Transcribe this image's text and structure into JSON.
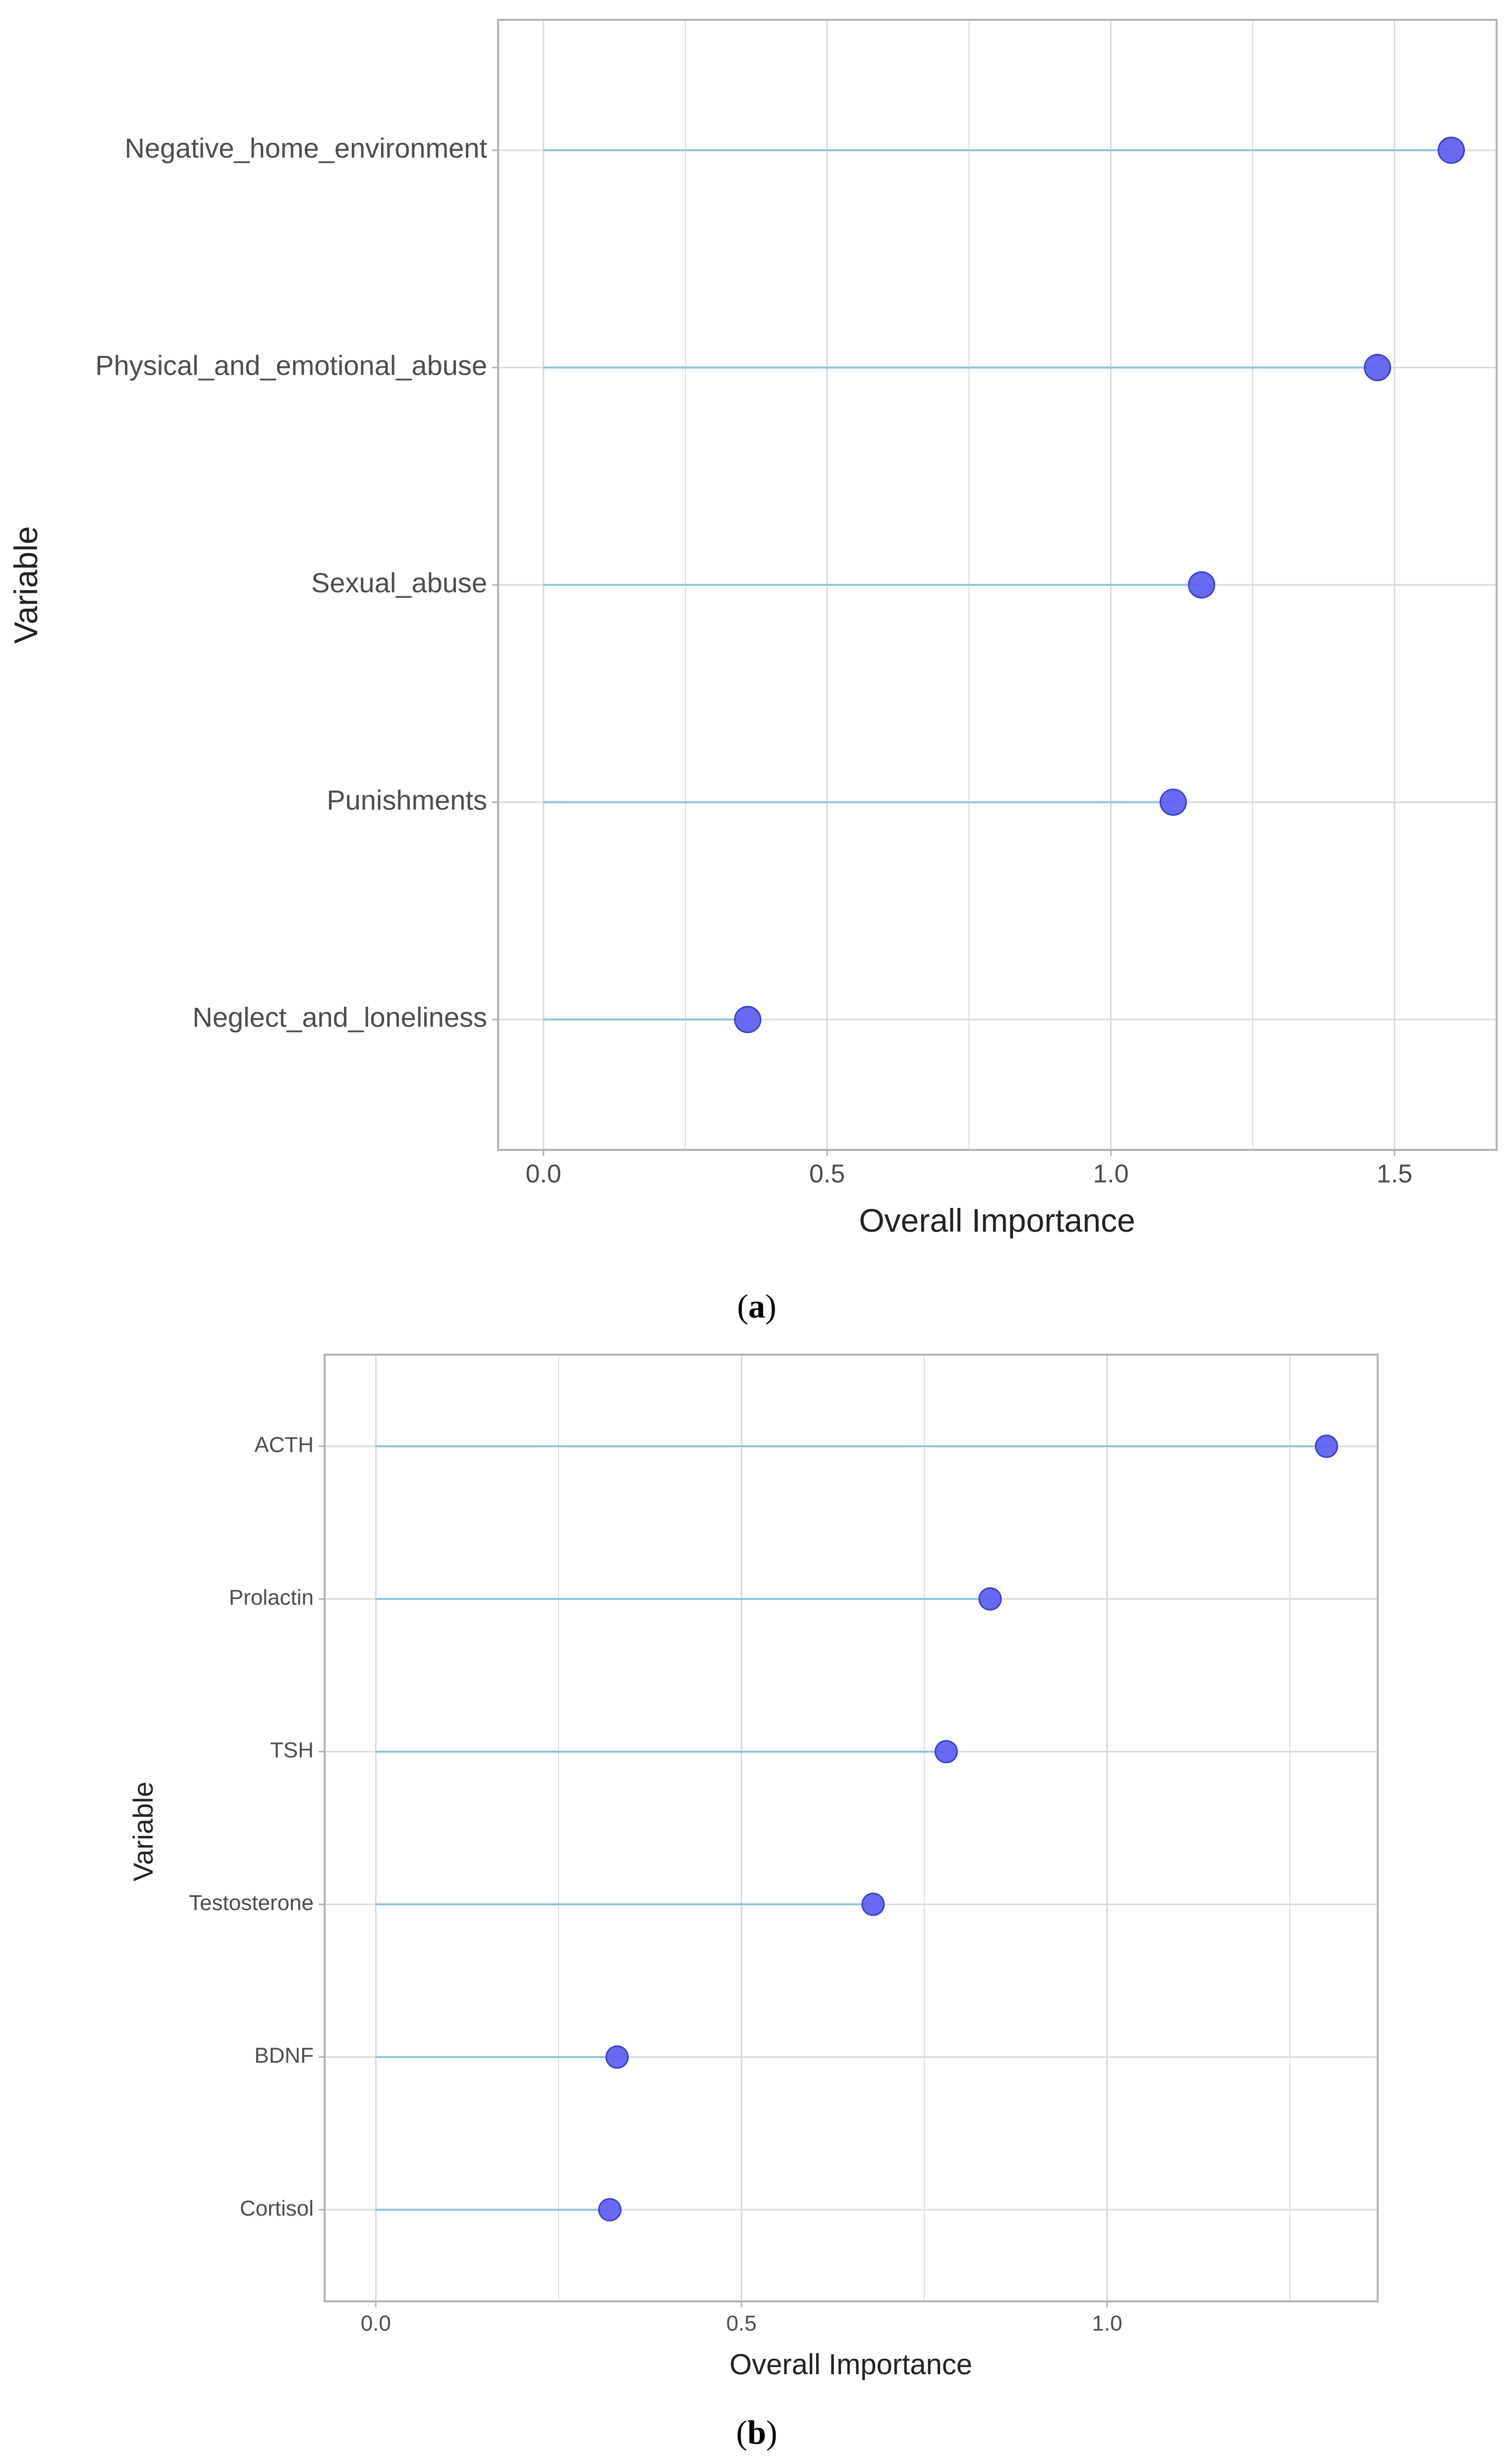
{
  "figure": {
    "colors": {
      "grid": "#d9d9d9",
      "panel_border": "#b3b3b3",
      "stem": "#8ec4dc",
      "point_fill": "#5b5ef0",
      "point_stroke": "#3a3dd8",
      "tick_text": "#4d4d4d"
    }
  },
  "chart_data": [
    {
      "id": "a",
      "type": "lollipop",
      "title": "",
      "xlabel": "Overall Importance",
      "ylabel": "Variable",
      "xlim": [
        -0.08,
        1.68
      ],
      "xticks": [
        "0.0",
        "0.5",
        "1.0",
        "1.5"
      ],
      "xtick_values": [
        0,
        0.5,
        1.0,
        1.5
      ],
      "grid": true,
      "caption_open": "(",
      "caption_letter": "a",
      "caption_close": ")",
      "categories": [
        "Negative_home_environment",
        "Physical_and_emotional_abuse",
        "Sexual_abuse",
        "Punishments",
        "Neglect_and_loneliness"
      ],
      "values": [
        1.6,
        1.47,
        1.16,
        1.11,
        0.36
      ]
    },
    {
      "id": "b",
      "type": "lollipop",
      "title": "",
      "xlabel": "Overall Importance",
      "ylabel": "Variable",
      "xlim": [
        -0.07,
        1.37
      ],
      "xticks": [
        "0.0",
        "0.5",
        "1.0"
      ],
      "xtick_values": [
        0,
        0.5,
        1.0
      ],
      "grid": true,
      "caption_open": "(",
      "caption_letter": "b",
      "caption_close": ")",
      "categories": [
        "ACTH",
        "Prolactin",
        "TSH",
        "Testosterone",
        "BDNF",
        "Cortisol"
      ],
      "values": [
        1.3,
        0.84,
        0.78,
        0.68,
        0.33,
        0.32
      ]
    }
  ]
}
